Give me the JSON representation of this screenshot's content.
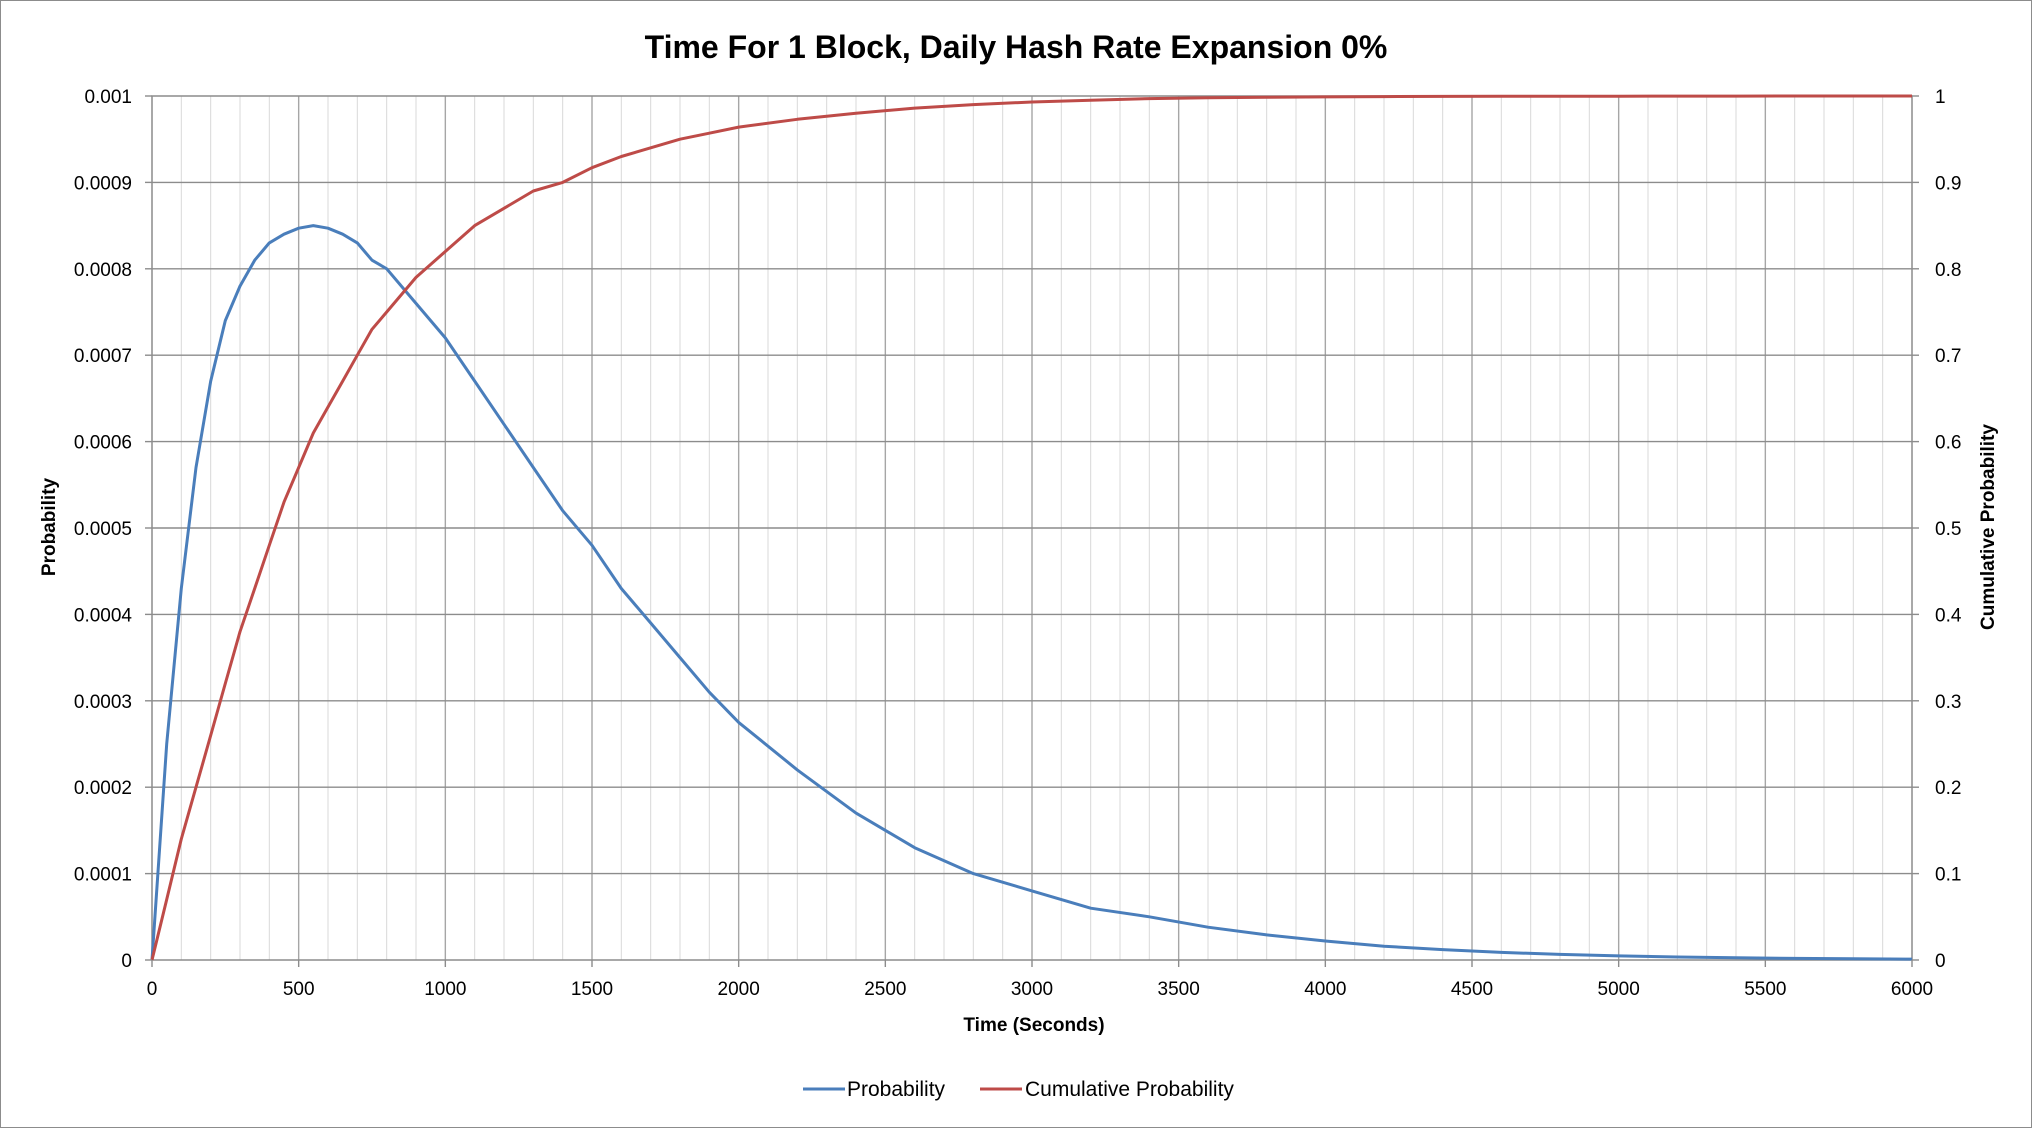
{
  "chart_data": {
    "type": "line",
    "title": "Time For 1 Block, Daily Hash Rate Expansion 0%",
    "xlabel": "Time (Seconds)",
    "ylabel": "Probability",
    "y2label": "Cumulative Probability",
    "xlim": [
      0,
      6000
    ],
    "ylim": [
      0,
      0.001
    ],
    "y2lim": [
      0,
      1
    ],
    "x_ticks": [
      "0",
      "500",
      "1000",
      "1500",
      "2000",
      "2500",
      "3000",
      "3500",
      "4000",
      "4500",
      "5000",
      "5500",
      "6000"
    ],
    "y_ticks": [
      "0",
      "0.0001",
      "0.0002",
      "0.0003",
      "0.0004",
      "0.0005",
      "0.0006",
      "0.0007",
      "0.0008",
      "0.0009",
      "0.001"
    ],
    "y2_ticks": [
      "0",
      "0.1",
      "0.2",
      "0.3",
      "0.4",
      "0.5",
      "0.6",
      "0.7",
      "0.8",
      "0.9",
      "1"
    ],
    "grid": true,
    "legend_position": "bottom",
    "series": [
      {
        "name": "Probability",
        "axis": "left",
        "color": "#4a7ebb",
        "x": [
          0,
          50,
          100,
          150,
          200,
          250,
          300,
          350,
          400,
          450,
          500,
          550,
          600,
          650,
          700,
          750,
          800,
          900,
          1000,
          1100,
          1200,
          1300,
          1400,
          1500,
          1600,
          1700,
          1800,
          1900,
          2000,
          2200,
          2400,
          2600,
          2800,
          3000,
          3200,
          3400,
          3600,
          3800,
          4000,
          4200,
          4400,
          4600,
          4800,
          5000,
          5200,
          5400,
          5600,
          5800,
          6000
        ],
        "values": [
          0.0,
          0.00025,
          0.00043,
          0.00057,
          0.00067,
          0.00074,
          0.00078,
          0.00081,
          0.00083,
          0.00084,
          0.000847,
          0.00085,
          0.000847,
          0.00084,
          0.00083,
          0.00081,
          0.0008,
          0.00076,
          0.00072,
          0.00067,
          0.00062,
          0.00057,
          0.00052,
          0.00048,
          0.00043,
          0.00039,
          0.00035,
          0.00031,
          0.000275,
          0.00022,
          0.00017,
          0.00013,
          0.0001,
          8e-05,
          6e-05,
          5e-05,
          3.8e-05,
          2.9e-05,
          2.2e-05,
          1.6e-05,
          1.2e-05,
          8.8e-06,
          6.5e-06,
          4.8e-06,
          3.5e-06,
          2.6e-06,
          1.9e-06,
          1.4e-06,
          1e-06
        ]
      },
      {
        "name": "Cumulative Probability",
        "axis": "right",
        "color": "#be4b48",
        "x": [
          0,
          50,
          100,
          150,
          200,
          250,
          300,
          350,
          400,
          450,
          500,
          550,
          600,
          650,
          700,
          750,
          800,
          900,
          1000,
          1100,
          1200,
          1300,
          1400,
          1500,
          1600,
          1700,
          1800,
          1900,
          2000,
          2200,
          2400,
          2600,
          2800,
          3000,
          3200,
          3400,
          3600,
          3800,
          4000,
          4200,
          4400,
          4600,
          4800,
          5000,
          5200,
          5400,
          5600,
          5800,
          6000
        ],
        "values": [
          0.0,
          0.07,
          0.14,
          0.2,
          0.26,
          0.32,
          0.38,
          0.43,
          0.48,
          0.53,
          0.57,
          0.61,
          0.64,
          0.67,
          0.7,
          0.73,
          0.75,
          0.79,
          0.82,
          0.85,
          0.87,
          0.89,
          0.9,
          0.917,
          0.93,
          0.94,
          0.95,
          0.957,
          0.964,
          0.973,
          0.98,
          0.986,
          0.99,
          0.993,
          0.995,
          0.997,
          0.998,
          0.9985,
          0.999,
          0.9993,
          0.9995,
          0.9996,
          0.9997,
          0.9998,
          0.9999,
          0.9999,
          1.0,
          1.0,
          1.0
        ]
      }
    ]
  }
}
